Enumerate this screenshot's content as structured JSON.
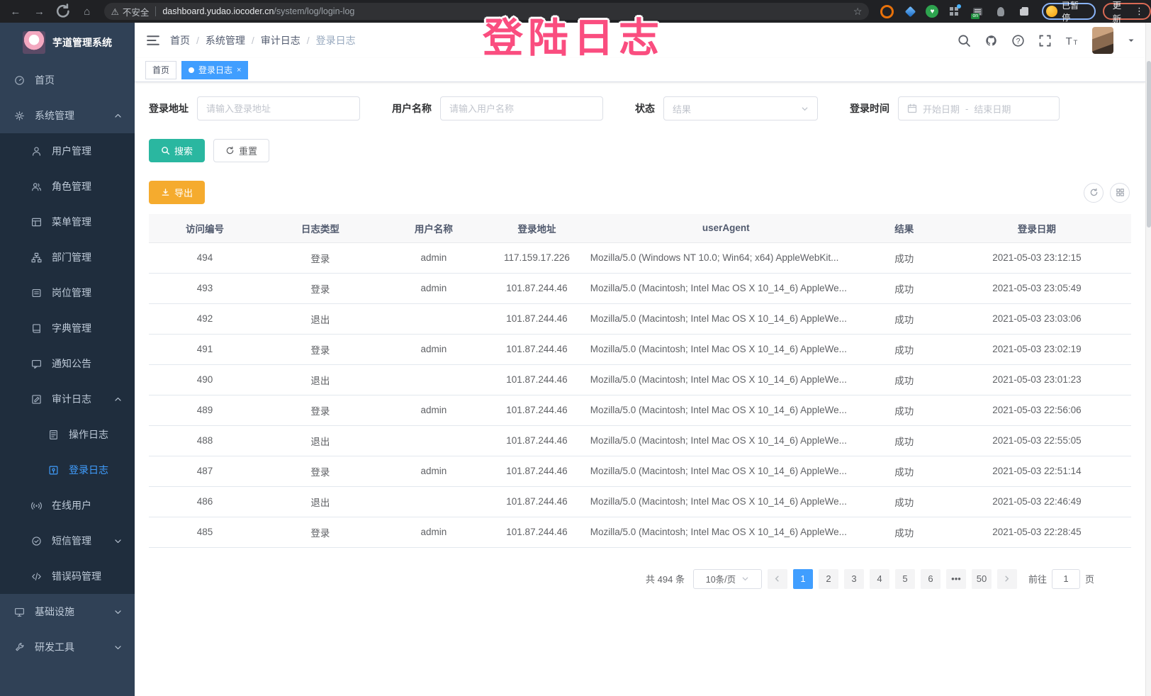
{
  "browser": {
    "security_label": "不安全",
    "url_domain": "dashboard.yudao.iocoder.cn",
    "url_path": "/system/log/login-log",
    "paused_label": "已暂停",
    "update_label": "更新",
    "extensions": [
      "orange-circle-extension-icon",
      "blue-gem-extension-icon",
      "green-check-extension-icon",
      "grid-extension-icon",
      "tabs-on-extension-icon",
      "plant-extension-icon",
      "puzzle-extension-icon"
    ]
  },
  "annotation": {
    "text": "登陆日志"
  },
  "sidebar": {
    "title": "芋道管理系统",
    "items": [
      {
        "id": "home",
        "label": "首页",
        "icon": "dashboard-icon",
        "level": 1,
        "active": false
      },
      {
        "id": "system",
        "label": "系统管理",
        "icon": "gear-icon",
        "level": 1,
        "active": false,
        "arrow": "up"
      },
      {
        "id": "user",
        "label": "用户管理",
        "icon": "user-icon",
        "level": 2,
        "active": false
      },
      {
        "id": "role",
        "label": "角色管理",
        "icon": "peoples-icon",
        "level": 2,
        "active": false
      },
      {
        "id": "menu",
        "label": "菜单管理",
        "icon": "tree-table-icon",
        "level": 2,
        "active": false
      },
      {
        "id": "dept",
        "label": "部门管理",
        "icon": "tree-icon",
        "level": 2,
        "active": false
      },
      {
        "id": "post",
        "label": "岗位管理",
        "icon": "post-icon",
        "level": 2,
        "active": false
      },
      {
        "id": "dict",
        "label": "字典管理",
        "icon": "dict-icon",
        "level": 2,
        "active": false
      },
      {
        "id": "notice",
        "label": "通知公告",
        "icon": "message-icon",
        "level": 2,
        "active": false
      },
      {
        "id": "audit-log",
        "label": "审计日志",
        "icon": "log-icon",
        "level": 2,
        "active": false,
        "arrow": "up"
      },
      {
        "id": "operate-log",
        "label": "操作日志",
        "icon": "form-icon",
        "level": 3,
        "active": false
      },
      {
        "id": "login-log",
        "label": "登录日志",
        "icon": "logininfor-icon",
        "level": 3,
        "active": true
      },
      {
        "id": "online-user",
        "label": "在线用户",
        "icon": "online-icon",
        "level": 2,
        "active": false
      },
      {
        "id": "sms",
        "label": "短信管理",
        "icon": "sms-icon",
        "level": 2,
        "active": false,
        "arrow": "down"
      },
      {
        "id": "errcode",
        "label": "错误码管理",
        "icon": "code-icon",
        "level": 2,
        "active": false
      },
      {
        "id": "infra",
        "label": "基础设施",
        "icon": "infra-icon",
        "level": 1,
        "active": false,
        "arrow": "down"
      },
      {
        "id": "dev-tool",
        "label": "研发工具",
        "icon": "tool-icon",
        "level": 1,
        "active": false,
        "arrow": "down"
      }
    ]
  },
  "breadcrumb": [
    "首页",
    "系统管理",
    "审计日志",
    "登录日志"
  ],
  "tags": [
    {
      "label": "首页",
      "active": false,
      "closable": false
    },
    {
      "label": "登录日志",
      "active": true,
      "closable": true
    }
  ],
  "search_form": {
    "login_address_label": "登录地址",
    "login_address_placeholder": "请输入登录地址",
    "username_label": "用户名称",
    "username_placeholder": "请输入用户名称",
    "status_label": "状态",
    "status_placeholder": "结果",
    "login_time_label": "登录时间",
    "date_start_placeholder": "开始日期",
    "date_separator": "-",
    "date_end_placeholder": "结束日期",
    "search_button": "搜索",
    "reset_button": "重置"
  },
  "toolbar": {
    "export_button": "导出"
  },
  "table": {
    "headers": [
      "访问编号",
      "日志类型",
      "用户名称",
      "登录地址",
      "userAgent",
      "结果",
      "登录日期"
    ],
    "rows": [
      {
        "id": "494",
        "type": "登录",
        "username": "admin",
        "ip": "117.159.17.226",
        "user_agent": "Mozilla/5.0 (Windows NT 10.0; Win64; x64) AppleWebKit...",
        "result": "成功",
        "date": "2021-05-03 23:12:15"
      },
      {
        "id": "493",
        "type": "登录",
        "username": "admin",
        "ip": "101.87.244.46",
        "user_agent": "Mozilla/5.0 (Macintosh; Intel Mac OS X 10_14_6) AppleWe...",
        "result": "成功",
        "date": "2021-05-03 23:05:49"
      },
      {
        "id": "492",
        "type": "退出",
        "username": "",
        "ip": "101.87.244.46",
        "user_agent": "Mozilla/5.0 (Macintosh; Intel Mac OS X 10_14_6) AppleWe...",
        "result": "成功",
        "date": "2021-05-03 23:03:06"
      },
      {
        "id": "491",
        "type": "登录",
        "username": "admin",
        "ip": "101.87.244.46",
        "user_agent": "Mozilla/5.0 (Macintosh; Intel Mac OS X 10_14_6) AppleWe...",
        "result": "成功",
        "date": "2021-05-03 23:02:19"
      },
      {
        "id": "490",
        "type": "退出",
        "username": "",
        "ip": "101.87.244.46",
        "user_agent": "Mozilla/5.0 (Macintosh; Intel Mac OS X 10_14_6) AppleWe...",
        "result": "成功",
        "date": "2021-05-03 23:01:23"
      },
      {
        "id": "489",
        "type": "登录",
        "username": "admin",
        "ip": "101.87.244.46",
        "user_agent": "Mozilla/5.0 (Macintosh; Intel Mac OS X 10_14_6) AppleWe...",
        "result": "成功",
        "date": "2021-05-03 22:56:06"
      },
      {
        "id": "488",
        "type": "退出",
        "username": "",
        "ip": "101.87.244.46",
        "user_agent": "Mozilla/5.0 (Macintosh; Intel Mac OS X 10_14_6) AppleWe...",
        "result": "成功",
        "date": "2021-05-03 22:55:05"
      },
      {
        "id": "487",
        "type": "登录",
        "username": "admin",
        "ip": "101.87.244.46",
        "user_agent": "Mozilla/5.0 (Macintosh; Intel Mac OS X 10_14_6) AppleWe...",
        "result": "成功",
        "date": "2021-05-03 22:51:14"
      },
      {
        "id": "486",
        "type": "退出",
        "username": "",
        "ip": "101.87.244.46",
        "user_agent": "Mozilla/5.0 (Macintosh; Intel Mac OS X 10_14_6) AppleWe...",
        "result": "成功",
        "date": "2021-05-03 22:46:49"
      },
      {
        "id": "485",
        "type": "登录",
        "username": "admin",
        "ip": "101.87.244.46",
        "user_agent": "Mozilla/5.0 (Macintosh; Intel Mac OS X 10_14_6) AppleWe...",
        "result": "成功",
        "date": "2021-05-03 22:28:45"
      }
    ]
  },
  "pagination": {
    "total_label": "共 494 条",
    "page_size": "10条/页",
    "pages": [
      "1",
      "2",
      "3",
      "4",
      "5",
      "6",
      "•••",
      "50"
    ],
    "active_page": "1",
    "goto_label": "前往",
    "goto_value": "1",
    "goto_unit": "页"
  },
  "colors": {
    "primary": "#409eff",
    "search_button": "#2ab7a0",
    "export_button": "#f5ab2e",
    "sidebar_bg": "#304156",
    "submenu_bg": "#1f2d3d",
    "annotation": "#fa4d7f"
  }
}
